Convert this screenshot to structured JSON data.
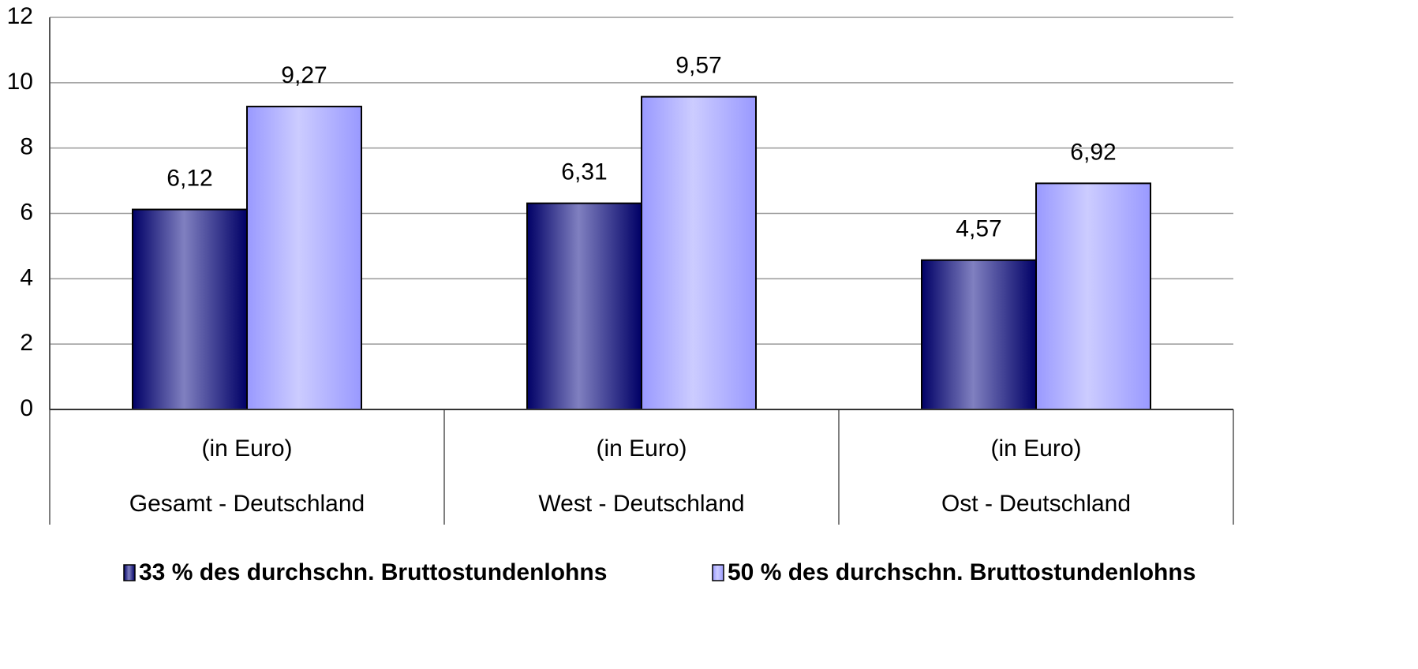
{
  "chart_data": {
    "type": "bar",
    "categories": [
      "Gesamt - Deutschland",
      "West - Deutschland",
      "Ost - Deutschland"
    ],
    "sub_categories": [
      "(in Euro)",
      "(in Euro)",
      "(in Euro)"
    ],
    "series": [
      {
        "name": "33 % des durchschn. Bruttostundenlohns",
        "color": "#8080c0",
        "values": [
          6.12,
          6.31,
          4.57
        ],
        "value_labels": [
          "6,12",
          "6,31",
          "4,57"
        ]
      },
      {
        "name": "50 % des durchschn. Bruttostundenlohns",
        "color": "#ccccff",
        "values": [
          9.27,
          9.57,
          6.92
        ],
        "value_labels": [
          "9,27",
          "9,57",
          "6,92"
        ]
      }
    ],
    "ylim": [
      0,
      12
    ],
    "yticks": [
      0,
      2,
      4,
      6,
      8,
      10,
      12
    ],
    "grid": true
  }
}
